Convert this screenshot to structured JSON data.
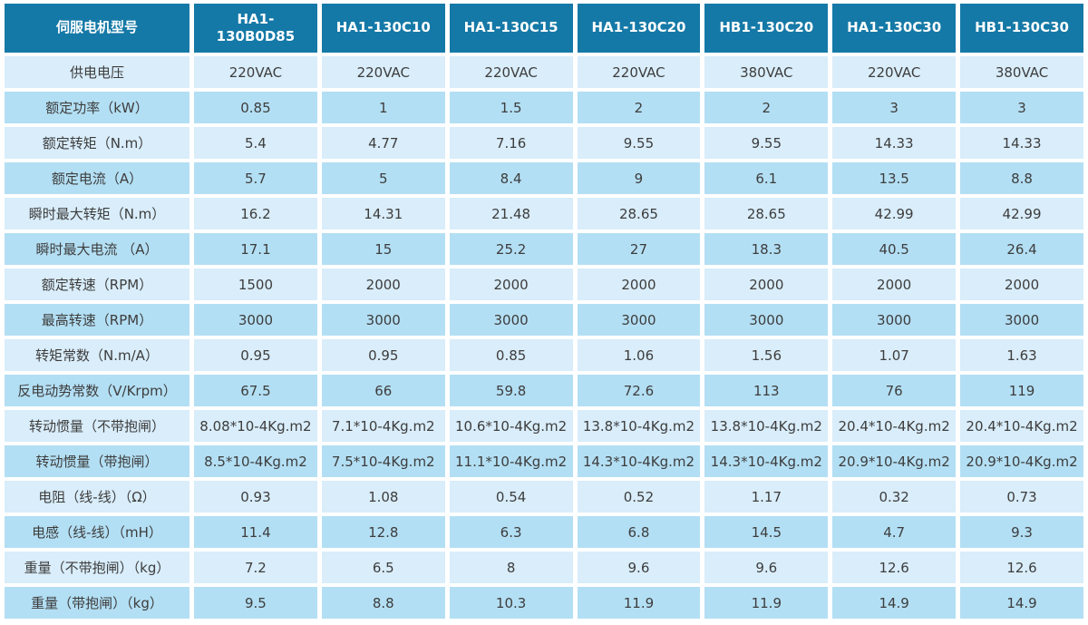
{
  "chart_data": {
    "type": "table",
    "title": "伺服电机型号",
    "columns": [
      "HA1-130B0D85",
      "HA1-130C10",
      "HA1-130C15",
      "HA1-130C20",
      "HB1-130C20",
      "HA1-130C30",
      "HB1-130C30"
    ],
    "rows": [
      {
        "label": "供电电压",
        "values": [
          "220VAC",
          "220VAC",
          "220VAC",
          "220VAC",
          "380VAC",
          "220VAC",
          "380VAC"
        ]
      },
      {
        "label": "额定功率（kW）",
        "values": [
          "0.85",
          "1",
          "1.5",
          "2",
          "2",
          "3",
          "3"
        ]
      },
      {
        "label": "额定转矩（N.m）",
        "values": [
          "5.4",
          "4.77",
          "7.16",
          "9.55",
          "9.55",
          "14.33",
          "14.33"
        ]
      },
      {
        "label": "额定电流（A）",
        "values": [
          "5.7",
          "5",
          "8.4",
          "9",
          "6.1",
          "13.5",
          "8.8"
        ]
      },
      {
        "label": "瞬时最大转矩（N.m）",
        "values": [
          "16.2",
          "14.31",
          "21.48",
          "28.65",
          "28.65",
          "42.99",
          "42.99"
        ]
      },
      {
        "label": "瞬时最大电流 （A）",
        "values": [
          "17.1",
          "15",
          "25.2",
          "27",
          "18.3",
          "40.5",
          "26.4"
        ]
      },
      {
        "label": "额定转速（RPM）",
        "values": [
          "1500",
          "2000",
          "2000",
          "2000",
          "2000",
          "2000",
          "2000"
        ]
      },
      {
        "label": "最高转速（RPM）",
        "values": [
          "3000",
          "3000",
          "3000",
          "3000",
          "3000",
          "3000",
          "3000"
        ]
      },
      {
        "label": "转矩常数（N.m/A）",
        "values": [
          "0.95",
          "0.95",
          "0.85",
          "1.06",
          "1.56",
          "1.07",
          "1.63"
        ]
      },
      {
        "label": "反电动势常数（V/Krpm）",
        "values": [
          "67.5",
          "66",
          "59.8",
          "72.6",
          "113",
          "76",
          "119"
        ]
      },
      {
        "label": "转动惯量（不带抱闸）",
        "values": [
          "8.08*10-4Kg.m2",
          "7.1*10-4Kg.m2",
          "10.6*10-4Kg.m2",
          "13.8*10-4Kg.m2",
          "13.8*10-4Kg.m2",
          "20.4*10-4Kg.m2",
          "20.4*10-4Kg.m2"
        ]
      },
      {
        "label": "转动惯量（带抱闸）",
        "values": [
          "8.5*10-4Kg.m2",
          "7.5*10-4Kg.m2",
          "11.1*10-4Kg.m2",
          "14.3*10-4Kg.m2",
          "14.3*10-4Kg.m2",
          "20.9*10-4Kg.m2",
          "20.9*10-4Kg.m2"
        ]
      },
      {
        "label": "电阻（线-线）（Ω）",
        "values": [
          "0.93",
          "1.08",
          "0.54",
          "0.52",
          "1.17",
          "0.32",
          "0.73"
        ]
      },
      {
        "label": "电感（线-线）（mH）",
        "values": [
          "11.4",
          "12.8",
          "6.3",
          "6.8",
          "14.5",
          "4.7",
          "9.3"
        ]
      },
      {
        "label": "重量（不带抱闸）（kg）",
        "values": [
          "7.2",
          "6.5",
          "8",
          "9.6",
          "9.6",
          "12.6",
          "12.6"
        ]
      },
      {
        "label": "重量（带抱闸）（kg）",
        "values": [
          "9.5",
          "8.8",
          "10.3",
          "11.9",
          "11.9",
          "14.9",
          "14.9"
        ]
      }
    ],
    "layout": {
      "grid": "white-gutters",
      "row_striping": "alternating",
      "stripe_start": "light"
    }
  },
  "colors": {
    "header_bg": "#1579A7",
    "header_text": "#FFFFFF",
    "row_light": "#D9EDFA",
    "row_dark": "#B3DFF4",
    "cell_text": "#3D3D3D",
    "gutter": "#FFFFFF"
  }
}
